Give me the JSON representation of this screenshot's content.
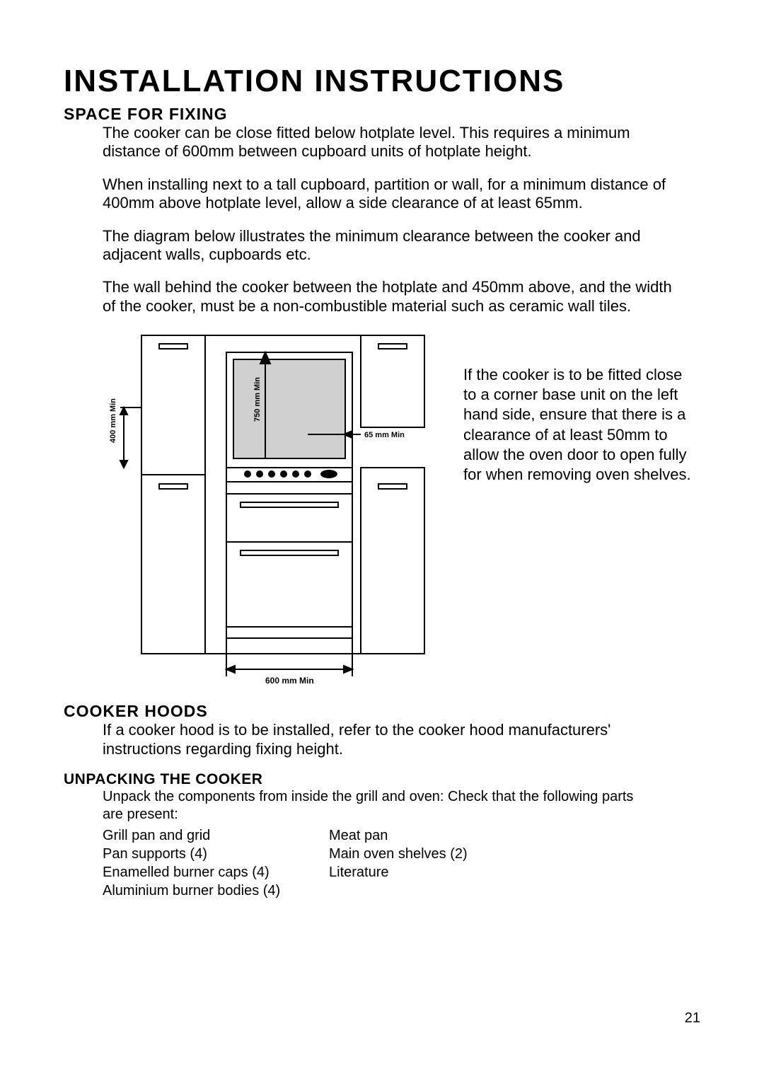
{
  "title": "INSTALLATION INSTRUCTIONS",
  "pageNumber": "21",
  "spaceForFixing": {
    "heading": "SPACE FOR FIXING",
    "p1": "The cooker can be close fitted below hotplate level. This requires a minimum distance of 600mm between cupboard units of hotplate height.",
    "p2": "When installing next to a tall cupboard, partition or wall, for a minimum distance of 400mm above hotplate level, allow a side clearance of at least 65mm.",
    "p3": "The diagram below illustrates the minimum clearance between the cooker and adjacent walls, cupboards etc.",
    "p4": "The wall behind the cooker between the hotplate and 450mm above, and the width of the cooker, must be a non-combustible material such as ceramic wall tiles.",
    "sideNote": "If the cooker is to be fitted close to a corner base unit on the left hand side, ensure that there is a clearance of at least 50mm to allow the oven door to open fully for when removing oven shelves."
  },
  "diagram": {
    "label400": "400 mm Min",
    "label750": "750 mm Min",
    "label65": "65 mm Min",
    "label600": "600 mm Min",
    "strokeColor": "#000000",
    "strokeWidth": 2,
    "knobFill": "#000000"
  },
  "cookerHoods": {
    "heading": "COOKER HOODS",
    "p1": "If a cooker hood is to be installed, refer to the cooker hood manufacturers' instructions regarding fixing height."
  },
  "unpacking": {
    "heading": "UNPACKING THE COOKER",
    "intro": "Unpack the components from inside the grill and oven: Check that the following parts are present:",
    "col1": [
      "Grill pan and grid",
      "Pan supports (4)",
      "Enamelled burner caps (4)",
      "Aluminium burner bodies (4)"
    ],
    "col2": [
      "Meat pan",
      "Main oven shelves (2)",
      "Literature"
    ]
  }
}
